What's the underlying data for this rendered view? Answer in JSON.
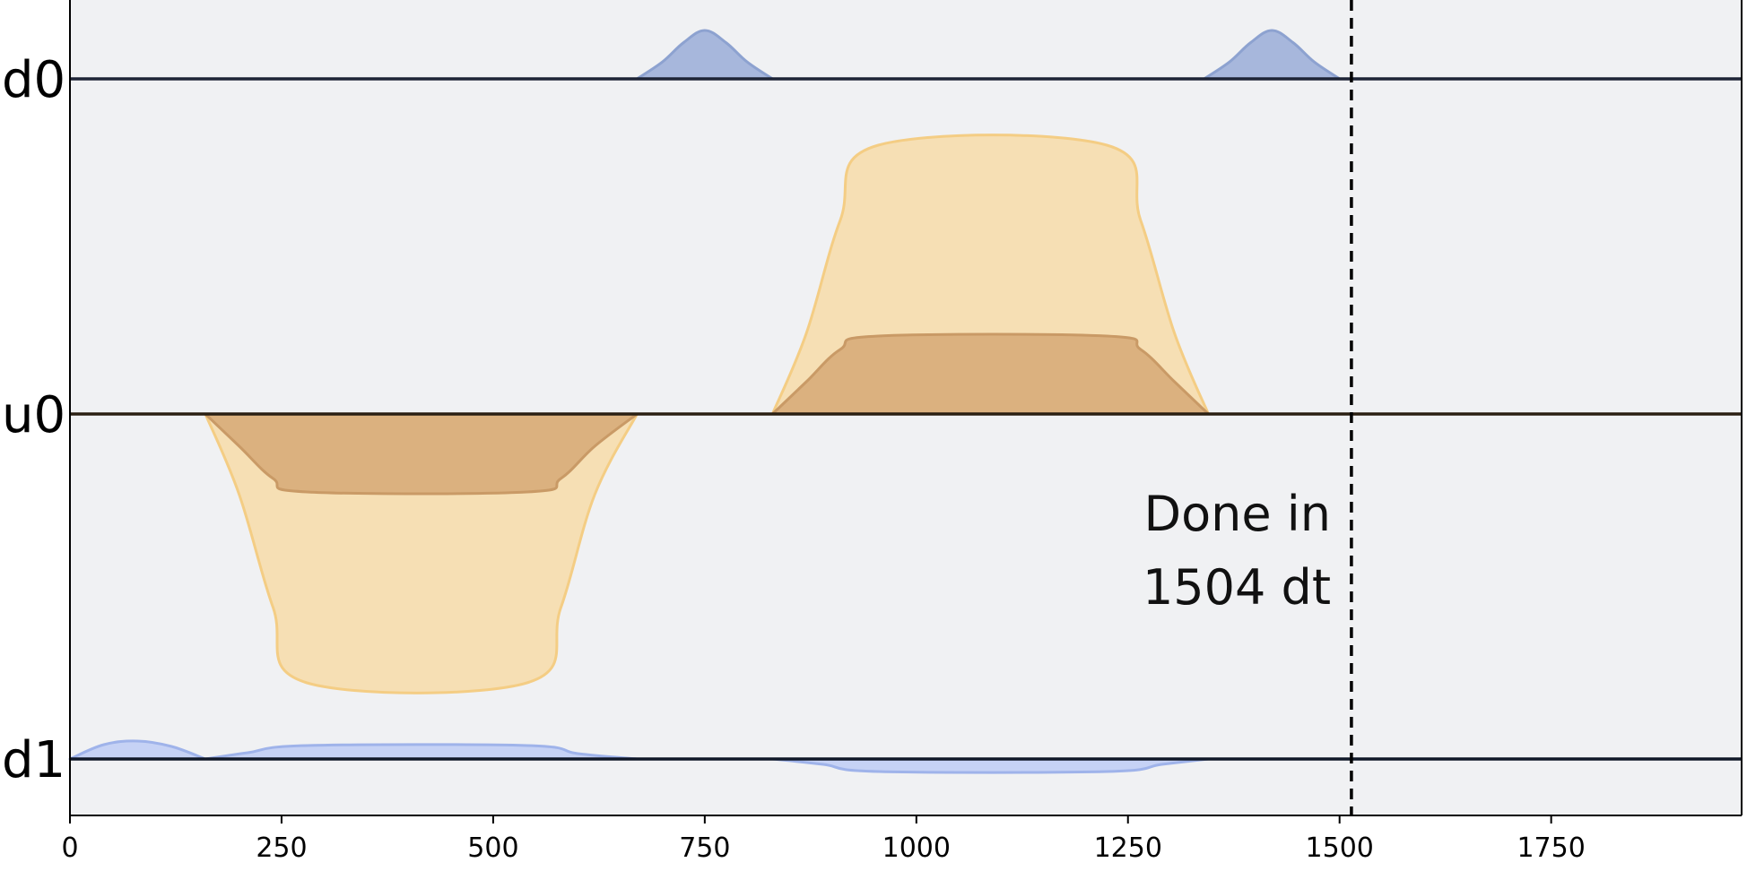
{
  "chart_data": {
    "type": "area",
    "xlim": [
      0,
      1975
    ],
    "xticks": [
      0,
      250,
      500,
      750,
      1000,
      1250,
      1500,
      1750
    ],
    "channels": [
      {
        "name": "d0",
        "series": [
          {
            "color": "#a7b7dc",
            "edge": "#8da2d0",
            "points": [
              [
                670,
                0
              ],
              [
                700,
                0.35
              ],
              [
                725,
                0.75
              ],
              [
                750,
                1.0
              ],
              [
                775,
                0.75
              ],
              [
                800,
                0.35
              ],
              [
                830,
                0
              ]
            ]
          },
          {
            "color": "#a7b7dc",
            "edge": "#8da2d0",
            "points": [
              [
                1340,
                0
              ],
              [
                1370,
                0.35
              ],
              [
                1395,
                0.75
              ],
              [
                1420,
                1.0
              ],
              [
                1445,
                0.75
              ],
              [
                1470,
                0.35
              ],
              [
                1500,
                0
              ]
            ]
          }
        ]
      },
      {
        "name": "u0",
        "series": [
          {
            "color": "#f6dfb4",
            "edge": "#f4cd84",
            "points": [
              [
                160,
                0
              ],
              [
                200,
                -0.3
              ],
              [
                240,
                -0.72
              ],
              [
                280,
                -1.0
              ],
              [
                540,
                -1.0
              ],
              [
                580,
                -0.72
              ],
              [
                620,
                -0.3
              ],
              [
                670,
                0
              ]
            ]
          },
          {
            "color": "#dbb17f",
            "edge": "#c99a66",
            "points": [
              [
                160,
                0
              ],
              [
                200,
                -0.12
              ],
              [
                240,
                -0.24
              ],
              [
                280,
                -0.29
              ],
              [
                540,
                -0.29
              ],
              [
                580,
                -0.24
              ],
              [
                620,
                -0.12
              ],
              [
                670,
                0
              ]
            ]
          },
          {
            "color": "#f6dfb4",
            "edge": "#f4cd84",
            "points": [
              [
                830,
                0
              ],
              [
                870,
                0.3
              ],
              [
                910,
                0.72
              ],
              [
                955,
                1.0
              ],
              [
                1225,
                1.0
              ],
              [
                1265,
                0.72
              ],
              [
                1305,
                0.3
              ],
              [
                1345,
                0
              ]
            ]
          },
          {
            "color": "#dbb17f",
            "edge": "#c99a66",
            "points": [
              [
                830,
                0
              ],
              [
                870,
                0.12
              ],
              [
                910,
                0.24
              ],
              [
                955,
                0.29
              ],
              [
                1225,
                0.29
              ],
              [
                1265,
                0.24
              ],
              [
                1305,
                0.12
              ],
              [
                1345,
                0
              ]
            ]
          }
        ]
      },
      {
        "name": "d1",
        "series": [
          {
            "color": "#c6d2f5",
            "edge": "#9fb3ea",
            "points": [
              [
                0,
                0
              ],
              [
                40,
                0.08
              ],
              [
                80,
                0.1
              ],
              [
                120,
                0.07
              ],
              [
                160,
                0
              ]
            ]
          },
          {
            "color": "#c6d2f5",
            "edge": "#9fb3ea",
            "points": [
              [
                160,
                0
              ],
              [
                210,
                0.035
              ],
              [
                280,
                0.075
              ],
              [
                540,
                0.075
              ],
              [
                600,
                0.03
              ],
              [
                670,
                0
              ]
            ]
          },
          {
            "color": "#c6d2f5",
            "edge": "#9fb3ea",
            "points": [
              [
                830,
                0
              ],
              [
                890,
                -0.03
              ],
              [
                955,
                -0.07
              ],
              [
                1225,
                -0.07
              ],
              [
                1290,
                -0.03
              ],
              [
                1345,
                0
              ]
            ]
          }
        ]
      }
    ],
    "vline": {
      "x": 1514,
      "style": "dashed"
    },
    "annotation": {
      "lines": [
        "Done in",
        "1504 dt"
      ]
    },
    "background": "#f0f1f3"
  }
}
